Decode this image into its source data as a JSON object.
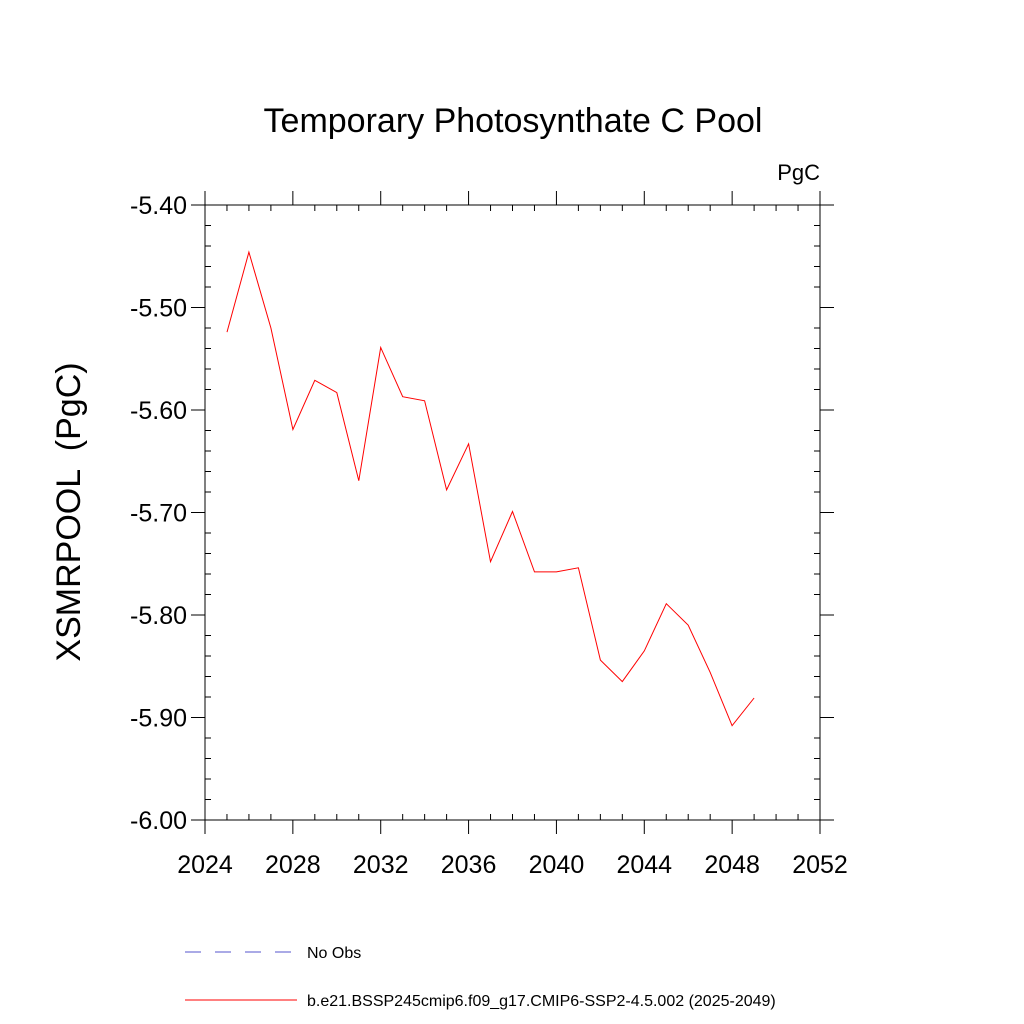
{
  "chart_data": {
    "type": "line",
    "title": "Temporary Photosynthate C Pool",
    "units": "PgC",
    "ylabel": "XSMRPOOL  (PgC)",
    "xlabel": "",
    "xlim": [
      2024,
      2052
    ],
    "ylim": [
      -6.0,
      -5.4
    ],
    "x_ticks": [
      2024,
      2028,
      2032,
      2036,
      2040,
      2044,
      2048,
      2052
    ],
    "x_tick_labels": [
      "2024",
      "2028",
      "2032",
      "2036",
      "2040",
      "2044",
      "2048",
      "2052"
    ],
    "y_ticks": [
      -6.0,
      -5.9,
      -5.8,
      -5.7,
      -5.6,
      -5.5,
      -5.4
    ],
    "y_tick_labels": [
      "-6.00",
      "-5.90",
      "-5.80",
      "-5.70",
      "-5.60",
      "-5.50",
      "-5.40"
    ],
    "grid": false,
    "legend_position": "bottom",
    "legend": [
      {
        "label": "No Obs",
        "color": "#5555cc",
        "dash": "dashed"
      },
      {
        "label": "b.e21.BSSP245cmip6.f09_g17.CMIP6-SSP2-4.5.002 (2025-2049)",
        "color": "#ff0000",
        "dash": "solid"
      }
    ],
    "series": [
      {
        "name": "b.e21.BSSP245cmip6.f09_g17.CMIP6-SSP2-4.5.002 (2025-2049)",
        "color": "#ff0000",
        "x": [
          2025,
          2026,
          2027,
          2028,
          2029,
          2030,
          2031,
          2032,
          2033,
          2034,
          2035,
          2036,
          2037,
          2038,
          2039,
          2040,
          2041,
          2042,
          2043,
          2044,
          2045,
          2046,
          2047,
          2048,
          2049
        ],
        "y": [
          -5.524,
          -5.446,
          -5.52,
          -5.619,
          -5.571,
          -5.583,
          -5.669,
          -5.539,
          -5.587,
          -5.591,
          -5.678,
          -5.633,
          -5.748,
          -5.699,
          -5.758,
          -5.758,
          -5.754,
          -5.844,
          -5.865,
          -5.835,
          -5.789,
          -5.81,
          -5.856,
          -5.908,
          -5.881
        ]
      }
    ]
  }
}
